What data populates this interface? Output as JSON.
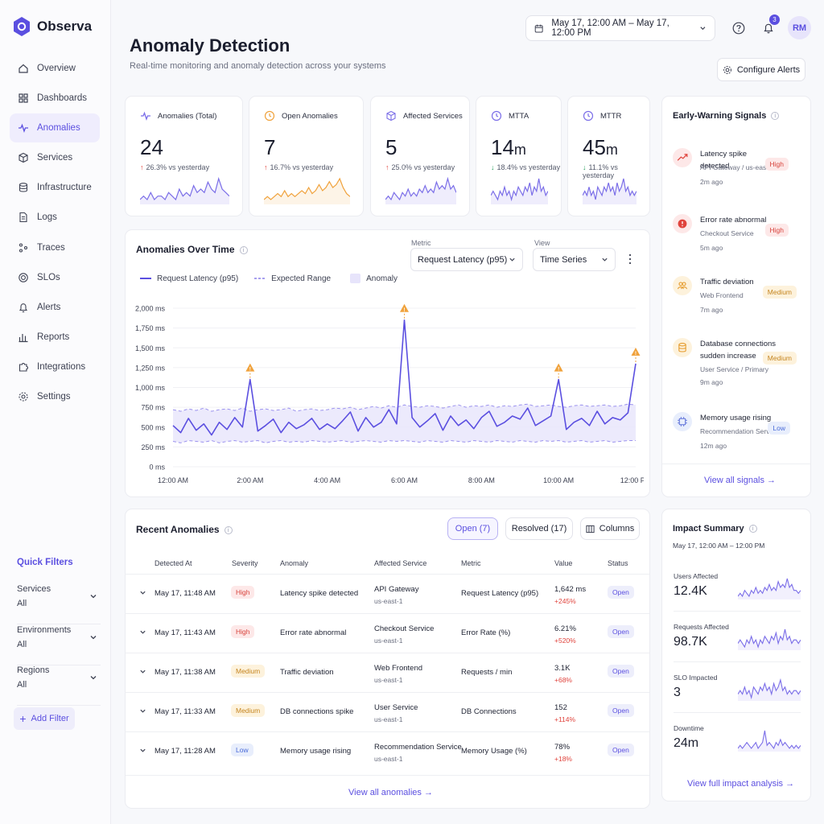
{
  "app": {
    "name": "Observa"
  },
  "sidebar": {
    "items": [
      {
        "label": "Overview",
        "icon": "home-icon"
      },
      {
        "label": "Dashboards",
        "icon": "grid-icon"
      },
      {
        "label": "Anomalies",
        "icon": "pulse-icon",
        "active": true
      },
      {
        "label": "Services",
        "icon": "cube-icon"
      },
      {
        "label": "Infrastructure",
        "icon": "database-icon"
      },
      {
        "label": "Logs",
        "icon": "file-icon"
      },
      {
        "label": "Traces",
        "icon": "traces-icon"
      },
      {
        "label": "SLOs",
        "icon": "target-icon"
      },
      {
        "label": "Alerts",
        "icon": "bell-icon"
      },
      {
        "label": "Reports",
        "icon": "bar-chart-icon"
      },
      {
        "label": "Integrations",
        "icon": "puzzle-icon"
      },
      {
        "label": "Settings",
        "icon": "gear-icon"
      }
    ],
    "quick_filters_title": "Quick Filters",
    "filters": [
      {
        "label": "Services",
        "value": "All"
      },
      {
        "label": "Environments",
        "value": "All"
      },
      {
        "label": "Regions",
        "value": "All"
      }
    ],
    "add_filter": "Add Filter"
  },
  "header": {
    "title": "Anomaly Detection",
    "subtitle": "Real-time monitoring and anomaly detection across your systems",
    "date_range": "May 17, 12:00 AM – May 17, 12:00 PM",
    "notification_count": "3",
    "avatar_initials": "RM",
    "configure_alerts": "Configure Alerts"
  },
  "kpis": [
    {
      "label": "Anomalies (Total)",
      "value": "24",
      "unit": "",
      "change": "26.3%",
      "direction": "up",
      "suffix": "vs yesterday",
      "color": "#7b6ee8"
    },
    {
      "label": "Open Anomalies",
      "value": "7",
      "unit": "",
      "change": "16.7%",
      "direction": "up",
      "suffix": "vs yesterday",
      "color": "#f0a23c"
    },
    {
      "label": "Affected Services",
      "value": "5",
      "unit": "",
      "change": "25.0%",
      "direction": "up",
      "suffix": "vs yesterday",
      "color": "#7b6ee8"
    },
    {
      "label": "MTTA",
      "value": "14",
      "unit": "m",
      "change": "18.4%",
      "direction": "down",
      "suffix": "vs yesterday",
      "color": "#7b6ee8"
    },
    {
      "label": "MTTR",
      "value": "45",
      "unit": "m",
      "change": "11.1%",
      "direction": "down",
      "suffix": "vs yesterday",
      "color": "#7b6ee8"
    }
  ],
  "chart_section": {
    "title": "Anomalies Over Time",
    "metric_label": "Metric",
    "metric_value": "Request Latency (p95)",
    "view_label": "View",
    "view_value": "Time Series",
    "legend": [
      "Request Latency (p95)",
      "Expected Range",
      "Anomaly"
    ]
  },
  "chart_data": {
    "type": "line",
    "ylim": [
      0,
      2000
    ],
    "yticks": [
      "0 ms",
      "250 ms",
      "500 ms",
      "750 ms",
      "1,000 ms",
      "1,250 ms",
      "1,500 ms",
      "1,750 ms",
      "2,000 ms"
    ],
    "xticks": [
      "12:00 AM",
      "2:00 AM",
      "4:00 AM",
      "6:00 AM",
      "8:00 AM",
      "10:00 AM",
      "12:00 PM"
    ],
    "x_hours": [
      0,
      0.2,
      0.4,
      0.6,
      0.8,
      1.0,
      1.2,
      1.4,
      1.6,
      1.8,
      2.0,
      2.2,
      2.4,
      2.6,
      2.8,
      3.0,
      3.2,
      3.4,
      3.6,
      3.8,
      4.0,
      4.2,
      4.4,
      4.6,
      4.8,
      5.0,
      5.2,
      5.4,
      5.6,
      5.8,
      6.0,
      6.2,
      6.4,
      6.6,
      6.8,
      7.0,
      7.2,
      7.4,
      7.6,
      7.8,
      8.0,
      8.2,
      8.4,
      8.6,
      8.8,
      9.0,
      9.2,
      9.4,
      9.6,
      9.8,
      10.0,
      10.2,
      10.4,
      10.6,
      10.8,
      11.0,
      11.2,
      11.4,
      11.6,
      11.8,
      12.0
    ],
    "series": [
      {
        "name": "Request Latency (p95)",
        "values": [
          520,
          430,
          610,
          460,
          540,
          400,
          560,
          470,
          620,
          500,
          1100,
          450,
          520,
          600,
          430,
          560,
          480,
          530,
          610,
          470,
          540,
          480,
          580,
          690,
          450,
          620,
          500,
          560,
          720,
          540,
          1850,
          620,
          500,
          580,
          670,
          460,
          640,
          520,
          590,
          480,
          620,
          700,
          510,
          560,
          640,
          600,
          740,
          520,
          580,
          640,
          1100,
          470,
          560,
          610,
          520,
          700,
          540,
          620,
          590,
          680,
          1300
        ]
      },
      {
        "name": "Expected Range",
        "lower": [
          320,
          300,
          330,
          320,
          310,
          330,
          300,
          320,
          330,
          310,
          320,
          330,
          300,
          320,
          330,
          310,
          320,
          310,
          330,
          320,
          310,
          320,
          330,
          310,
          320,
          330,
          320,
          310,
          330,
          320,
          330,
          320,
          310,
          330,
          320,
          310,
          330,
          320,
          310,
          330,
          320,
          310,
          330,
          320,
          310,
          330,
          320,
          310,
          330,
          320,
          330,
          310,
          320,
          330,
          310,
          320,
          330,
          310,
          320,
          330,
          330
        ],
        "upper": [
          720,
          700,
          730,
          710,
          740,
          700,
          720,
          730,
          710,
          740,
          700,
          720,
          730,
          710,
          720,
          740,
          700,
          720,
          730,
          710,
          720,
          740,
          730,
          750,
          720,
          740,
          760,
          740,
          770,
          750,
          780,
          760,
          750,
          770,
          760,
          740,
          760,
          780,
          750,
          770,
          760,
          780,
          750,
          770,
          760,
          780,
          790,
          760,
          770,
          780,
          760,
          750,
          770,
          780,
          760,
          770,
          780,
          760,
          770,
          790,
          780
        ]
      }
    ],
    "anomalies": [
      {
        "x": 2.0,
        "y": 1100
      },
      {
        "x": 6.0,
        "y": 1850
      },
      {
        "x": 10.0,
        "y": 1100
      },
      {
        "x": 12.0,
        "y": 1300
      }
    ]
  },
  "signals": {
    "title": "Early-Warning Signals",
    "items": [
      {
        "title": "Latency spike detected",
        "service": "API Gateway / us-east-1",
        "ago": "2m ago",
        "severity": "High",
        "level": "high",
        "icon": "trend-up-icon"
      },
      {
        "title": "Error rate abnormal",
        "service": "Checkout Service",
        "ago": "5m ago",
        "severity": "High",
        "level": "high",
        "icon": "alert-circle-icon"
      },
      {
        "title": "Traffic deviation",
        "service": "Web Frontend",
        "ago": "7m ago",
        "severity": "Medium",
        "level": "medium",
        "icon": "users-icon"
      },
      {
        "title": "Database connections sudden increase",
        "service": "User Service / Primary",
        "ago": "9m ago",
        "severity": "Medium",
        "level": "medium",
        "icon": "database-icon"
      },
      {
        "title": "Memory usage rising",
        "service": "Recommendation Service",
        "ago": "12m ago",
        "severity": "Low",
        "level": "low",
        "icon": "chip-icon"
      }
    ],
    "view_all": "View all signals →"
  },
  "recent": {
    "title": "Recent Anomalies",
    "tabs": [
      "Open (7)",
      "Resolved (17)"
    ],
    "columns_btn": "Columns",
    "headers": [
      "Detected At",
      "Severity",
      "Anomaly",
      "Affected Service",
      "Metric",
      "Value",
      "Status"
    ],
    "rows": [
      {
        "time": "May 17, 11:48 AM",
        "severity": "High",
        "level": "high",
        "anomaly": "Latency spike detected",
        "service": "API Gateway",
        "region": "us-east-1",
        "metric": "Request Latency (p95)",
        "value": "1,642 ms",
        "pct": "+245%",
        "status": "Open"
      },
      {
        "time": "May 17, 11:43 AM",
        "severity": "High",
        "level": "high",
        "anomaly": "Error rate abnormal",
        "service": "Checkout Service",
        "region": "us-east-1",
        "metric": "Error Rate (%)",
        "value": "6.21%",
        "pct": "+520%",
        "status": "Open"
      },
      {
        "time": "May 17, 11:38 AM",
        "severity": "Medium",
        "level": "medium",
        "anomaly": "Traffic deviation",
        "service": "Web Frontend",
        "region": "us-east-1",
        "metric": "Requests / min",
        "value": "3.1K",
        "pct": "+68%",
        "status": "Open"
      },
      {
        "time": "May 17, 11:33 AM",
        "severity": "Medium",
        "level": "medium",
        "anomaly": "DB connections spike",
        "service": "User Service",
        "region": "us-east-1",
        "metric": "DB Connections",
        "value": "152",
        "pct": "+114%",
        "status": "Open"
      },
      {
        "time": "May 17, 11:28 AM",
        "severity": "Low",
        "level": "low",
        "anomaly": "Memory usage rising",
        "service": "Recommendation Service",
        "region": "us-east-1",
        "metric": "Memory Usage (%)",
        "value": "78%",
        "pct": "+18%",
        "status": "Open"
      }
    ],
    "view_all": "View all anomalies →"
  },
  "impact": {
    "title": "Impact Summary",
    "range": "May 17, 12:00 AM – 12:00 PM",
    "items": [
      {
        "label": "Users Affected",
        "value": "12.4K"
      },
      {
        "label": "Requests Affected",
        "value": "98.7K"
      },
      {
        "label": "SLO Impacted",
        "value": "3"
      },
      {
        "label": "Downtime",
        "value": "24m"
      }
    ],
    "view_full": "View full impact analysis →"
  }
}
